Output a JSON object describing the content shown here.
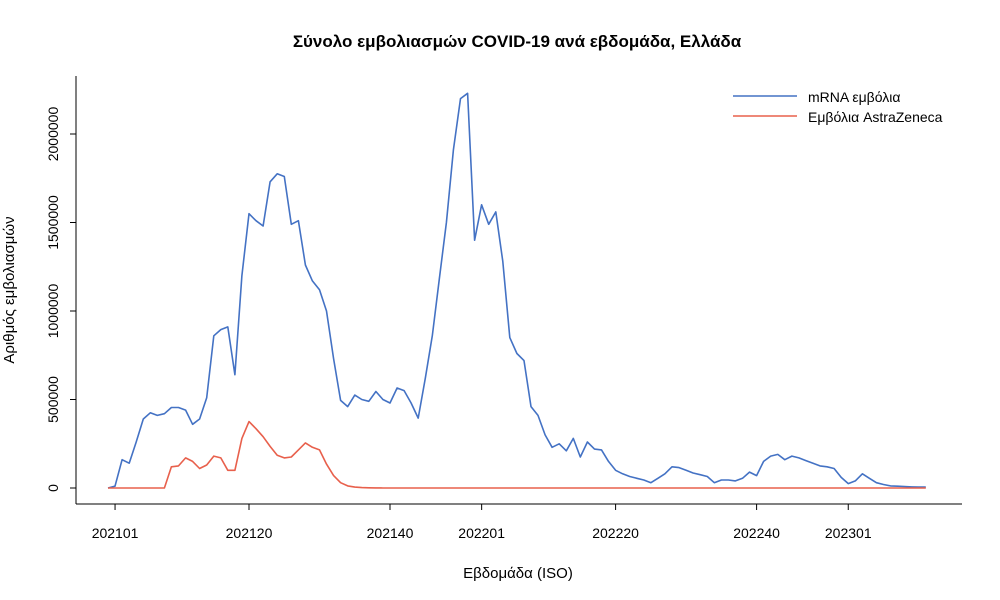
{
  "chart_data": {
    "type": "line",
    "title": "Σύνολο εμβολιασμών COVID-19 ανά εβδομάδα, Ελλάδα",
    "xlabel": "Εβδομάδα (ISO)",
    "ylabel": "Αριθμός εμβολιασμών",
    "ylim": [
      0,
      2300000
    ],
    "x_tick_labels": [
      "202101",
      "202120",
      "202140",
      "202201",
      "202220",
      "202240",
      "202301"
    ],
    "x_tick_week_index": [
      1,
      20,
      40,
      53,
      72,
      92,
      105
    ],
    "y_ticks": [
      0,
      500000,
      1000000,
      1500000,
      2000000
    ],
    "y_tick_labels": [
      "0",
      "500000",
      "1000000",
      "1500000",
      "2000000"
    ],
    "legend_position": "top-right",
    "grid": false,
    "series": [
      {
        "name": "mRNA εμβόλια",
        "color": "#4472c4",
        "values": [
          0,
          10000,
          160000,
          140000,
          260000,
          390000,
          425000,
          410000,
          420000,
          455000,
          455000,
          440000,
          360000,
          390000,
          510000,
          860000,
          895000,
          910000,
          640000,
          1200000,
          1550000,
          1510000,
          1480000,
          1730000,
          1775000,
          1760000,
          1490000,
          1510000,
          1260000,
          1170000,
          1120000,
          1000000,
          730000,
          495000,
          460000,
          525000,
          500000,
          490000,
          545000,
          500000,
          480000,
          565000,
          550000,
          480000,
          395000,
          620000,
          860000,
          1180000,
          1500000,
          1910000,
          2200000,
          2230000,
          1400000,
          1600000,
          1490000,
          1560000,
          1280000,
          850000,
          760000,
          720000,
          460000,
          410000,
          300000,
          230000,
          250000,
          210000,
          280000,
          175000,
          260000,
          220000,
          215000,
          150000,
          100000,
          80000,
          65000,
          55000,
          45000,
          30000,
          55000,
          80000,
          120000,
          115000,
          100000,
          85000,
          75000,
          65000,
          30000,
          45000,
          45000,
          40000,
          55000,
          90000,
          70000,
          150000,
          180000,
          190000,
          160000,
          180000,
          170000,
          155000,
          140000,
          125000,
          120000,
          110000,
          60000,
          25000,
          40000,
          80000,
          55000,
          30000,
          20000,
          12000,
          10000,
          8000,
          6000,
          5000,
          5000
        ]
      },
      {
        "name": "Εμβόλια AstraZeneca",
        "color": "#e8604c",
        "values": [
          0,
          0,
          0,
          0,
          0,
          0,
          0,
          0,
          0,
          120000,
          125000,
          170000,
          150000,
          110000,
          130000,
          180000,
          170000,
          100000,
          100000,
          280000,
          375000,
          335000,
          290000,
          235000,
          185000,
          170000,
          175000,
          215000,
          255000,
          230000,
          215000,
          135000,
          70000,
          30000,
          12000,
          5000,
          2000,
          1000,
          500,
          0,
          0,
          0,
          0,
          0,
          0,
          0,
          0,
          0,
          0,
          0,
          0,
          0,
          0,
          0,
          0,
          0,
          0,
          0,
          0,
          0,
          0,
          0,
          0,
          0,
          0,
          0,
          0,
          0,
          0,
          0,
          0,
          0,
          0,
          0,
          0,
          0,
          0,
          0,
          0,
          0,
          0,
          0,
          0,
          0,
          0,
          0,
          0,
          0,
          0,
          0,
          0,
          0,
          0,
          0,
          0,
          0,
          0,
          0,
          0,
          0,
          0,
          0,
          0,
          0,
          0,
          0,
          0,
          0,
          0,
          0,
          0,
          0,
          0,
          0,
          0,
          0,
          0
        ]
      }
    ]
  }
}
